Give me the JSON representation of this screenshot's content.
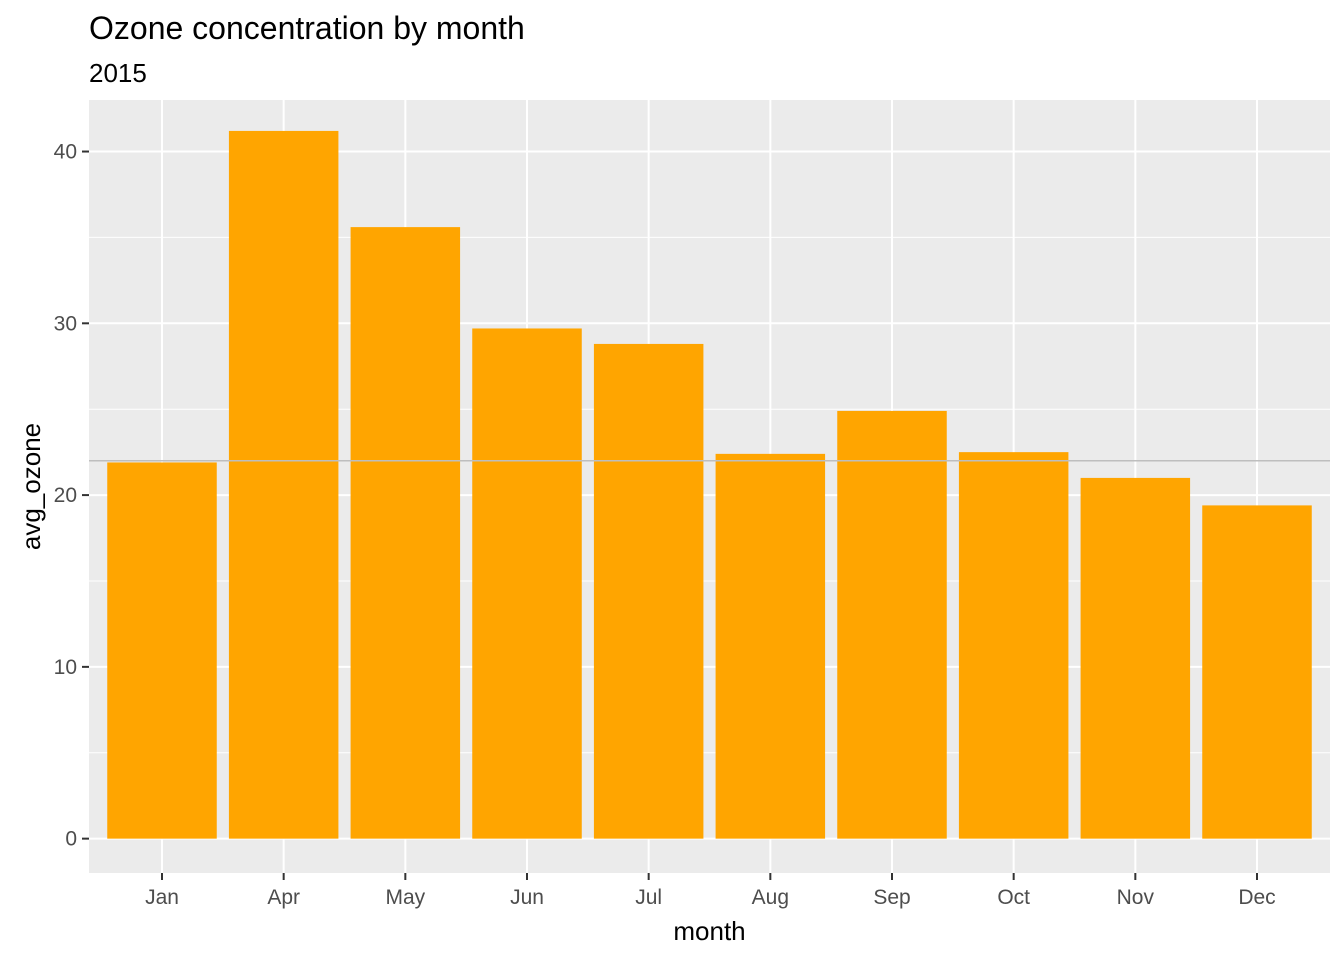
{
  "chart_data": {
    "type": "bar",
    "title": "Ozone concentration by month",
    "subtitle": "2015",
    "xlabel": "month",
    "ylabel": "avg_ozone",
    "categories": [
      "Jan",
      "Apr",
      "May",
      "Jun",
      "Jul",
      "Aug",
      "Sep",
      "Oct",
      "Nov",
      "Dec"
    ],
    "values": [
      21.9,
      41.2,
      35.6,
      29.7,
      28.8,
      22.4,
      24.9,
      22.5,
      21.0,
      19.4
    ],
    "ylim": [
      -2,
      43
    ],
    "yticks": [
      0,
      10,
      20,
      30,
      40
    ],
    "reference_line": 22,
    "grid": true,
    "colors": {
      "bar": "#FFA500",
      "panel_background": "#EBEBEB",
      "grid": "#FFFFFF",
      "reference_line": "#BEBEBE"
    }
  }
}
